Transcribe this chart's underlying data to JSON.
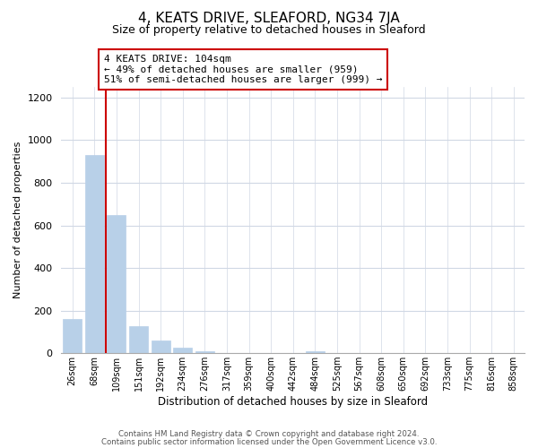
{
  "title": "4, KEATS DRIVE, SLEAFORD, NG34 7JA",
  "subtitle": "Size of property relative to detached houses in Sleaford",
  "xlabel": "Distribution of detached houses by size in Sleaford",
  "ylabel": "Number of detached properties",
  "bar_labels": [
    "26sqm",
    "68sqm",
    "109sqm",
    "151sqm",
    "192sqm",
    "234sqm",
    "276sqm",
    "317sqm",
    "359sqm",
    "400sqm",
    "442sqm",
    "484sqm",
    "525sqm",
    "567sqm",
    "608sqm",
    "650sqm",
    "692sqm",
    "733sqm",
    "775sqm",
    "816sqm",
    "858sqm"
  ],
  "bar_values": [
    160,
    930,
    650,
    125,
    60,
    28,
    10,
    0,
    0,
    0,
    0,
    10,
    0,
    0,
    0,
    0,
    0,
    0,
    0,
    0,
    0
  ],
  "bar_color": "#b8d0e8",
  "vline_color": "#cc0000",
  "annotation_text": "4 KEATS DRIVE: 104sqm\n← 49% of detached houses are smaller (959)\n51% of semi-detached houses are larger (999) →",
  "annotation_box_color": "#ffffff",
  "annotation_box_edge": "#cc0000",
  "ylim": [
    0,
    1250
  ],
  "yticks": [
    0,
    200,
    400,
    600,
    800,
    1000,
    1200
  ],
  "footer1": "Contains HM Land Registry data © Crown copyright and database right 2024.",
  "footer2": "Contains public sector information licensed under the Open Government Licence v3.0.",
  "background_color": "#ffffff",
  "grid_color": "#d0d8e4"
}
